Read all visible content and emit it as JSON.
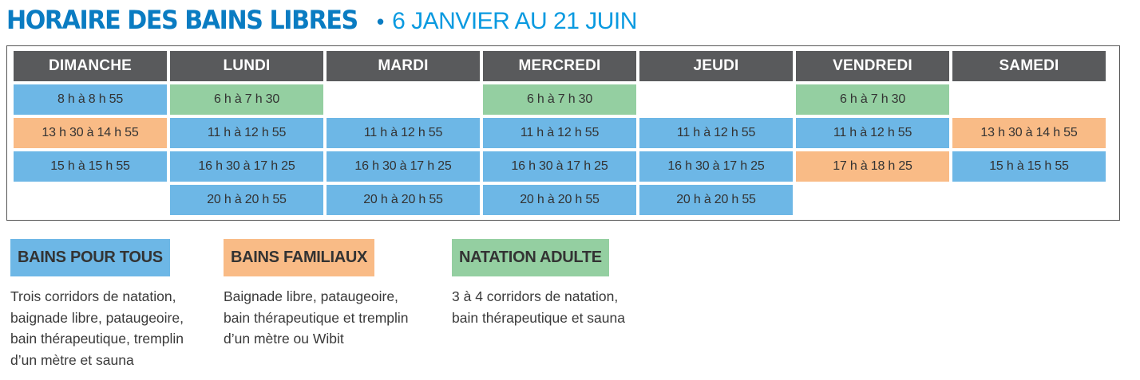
{
  "title": {
    "main": "HORAIRE DES BAINS LIBRES",
    "separator": "•",
    "subtitle": "6 JANVIER AU 21 JUIN"
  },
  "schedule": {
    "days": [
      "DIMANCHE",
      "LUNDI",
      "MARDI",
      "MERCREDI",
      "JEUDI",
      "VENDREDI",
      "SAMEDI"
    ],
    "rows": [
      [
        {
          "text": "8 h à 8 h 55",
          "type": "blue"
        },
        {
          "text": "6 h à 7 h 30",
          "type": "green"
        },
        {
          "text": "",
          "type": "empty"
        },
        {
          "text": "6 h à 7 h 30",
          "type": "green"
        },
        {
          "text": "",
          "type": "empty"
        },
        {
          "text": "6 h à 7 h 30",
          "type": "green"
        },
        {
          "text": "",
          "type": "empty"
        }
      ],
      [
        {
          "text": "13 h 30 à 14 h 55",
          "type": "orange"
        },
        {
          "text": "11 h à 12 h 55",
          "type": "blue"
        },
        {
          "text": "11 h à 12 h 55",
          "type": "blue"
        },
        {
          "text": "11 h à 12 h 55",
          "type": "blue"
        },
        {
          "text": "11 h à 12 h 55",
          "type": "blue"
        },
        {
          "text": "11 h à 12 h 55",
          "type": "blue"
        },
        {
          "text": "13 h 30 à 14 h 55",
          "type": "orange"
        }
      ],
      [
        {
          "text": "15 h à 15 h 55",
          "type": "blue"
        },
        {
          "text": "16 h 30 à 17 h 25",
          "type": "blue"
        },
        {
          "text": "16 h 30 à 17 h 25",
          "type": "blue"
        },
        {
          "text": "16 h 30 à 17 h 25",
          "type": "blue"
        },
        {
          "text": "16 h 30 à 17 h 25",
          "type": "blue"
        },
        {
          "text": "17 h à 18 h 25",
          "type": "orange"
        },
        {
          "text": "15 h à 15 h 55",
          "type": "blue"
        }
      ],
      [
        {
          "text": "",
          "type": "empty"
        },
        {
          "text": "20 h à 20 h 55",
          "type": "blue"
        },
        {
          "text": "20 h à 20 h 55",
          "type": "blue"
        },
        {
          "text": "20 h à 20 h 55",
          "type": "blue"
        },
        {
          "text": "20 h à 20 h 55",
          "type": "blue"
        },
        {
          "text": "",
          "type": "empty"
        },
        {
          "text": "",
          "type": "empty"
        }
      ]
    ]
  },
  "legend": [
    {
      "label": "BAINS POUR TOUS",
      "color": "#6db7e6",
      "description": "Trois corridors de natation,\nbaignade libre, pataugeoire,\nbain thérapeutique, tremplin\nd’un mètre et sauna"
    },
    {
      "label": "BAINS FAMILIAUX",
      "color": "#f9bb86",
      "description": "Baignade libre, pataugeoire,\nbain thérapeutique et tremplin\nd’un mètre ou Wibit"
    },
    {
      "label": "NATATION ADULTE",
      "color": "#94cfa1",
      "description": "3 à 4 corridors de natation,\nbain thérapeutique et sauna"
    }
  ],
  "colors": {
    "blue": "#6db7e6",
    "orange": "#f9bb86",
    "green": "#94cfa1",
    "header": "#595a5c",
    "title": "#0a7cc2"
  }
}
